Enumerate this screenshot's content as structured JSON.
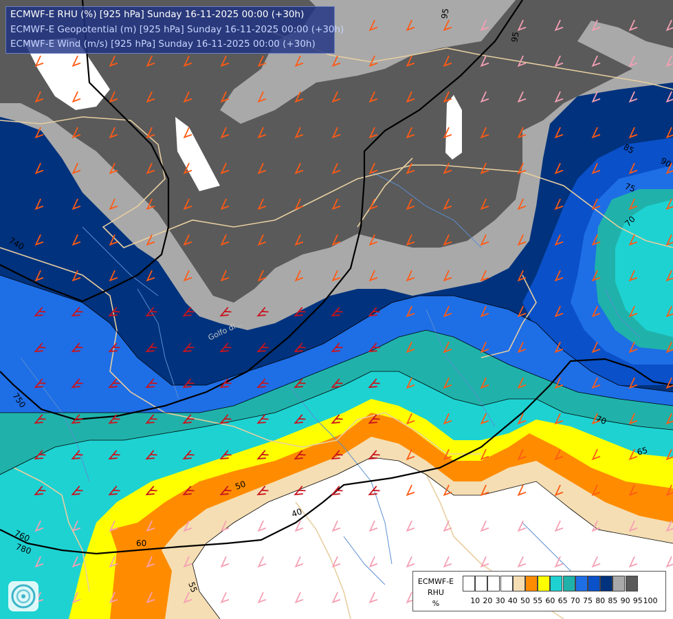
{
  "titles": {
    "line1": "ECMWF-E RHU (%) [925 hPa] Sunday 16-11-2025 00:00 (+30h)",
    "line2": "ECMWF-E Geopotential (m) [925 hPa] Sunday 16-11-2025 00:00 (+30h)",
    "line3": "ECMWF-E Wind (m/s) [925 hPa] Sunday 16-11-2025 00:00 (+30h)"
  },
  "legend": {
    "title_lines": [
      "ECMWF-E",
      "RHU",
      "%"
    ],
    "ticks": [
      "10",
      "20",
      "30",
      "40",
      "50",
      "55",
      "60",
      "65",
      "70",
      "75",
      "80",
      "85",
      "90",
      "95",
      "100"
    ],
    "colors": [
      "#ffffff",
      "#ffffff",
      "#ffffff",
      "#ffffff",
      "#f5deb3",
      "#ff8c00",
      "#ffff00",
      "#1ed2d2",
      "#20b2aa",
      "#1e6ee6",
      "#0a50c8",
      "#00327d",
      "#a9a9a9",
      "#5a5a5a"
    ]
  },
  "contour_labels": {
    "geopotential": [
      "740",
      "750",
      "760",
      "780"
    ],
    "rhu": [
      "95",
      "95",
      "85",
      "90",
      "75",
      "70",
      "70",
      "65",
      "60",
      "55",
      "50",
      "40"
    ]
  },
  "place_labels": [
    "Golfo di..."
  ],
  "colors": {
    "rhu_100": "#5a5a5a",
    "rhu_95": "#a9a9a9",
    "rhu_90": "#00327d",
    "rhu_85": "#0a50c8",
    "rhu_80": "#1e6ee6",
    "rhu_75": "#20b2aa",
    "rhu_70": "#1ed2d2",
    "rhu_65": "#ffff00",
    "rhu_60": "#ff8c00",
    "rhu_55": "#f5deb3",
    "rhu_low": "#ffffff",
    "geopotential_line": "#000000",
    "border_line": "#e8cfa0",
    "river_line": "#5a8fd0",
    "wind_strong": "#c8141e",
    "wind_moderate": "#ff5a14",
    "wind_light": "#f5a0b4"
  },
  "icons": [
    "ecmwf-logo-icon",
    "wind-barb-icon"
  ]
}
